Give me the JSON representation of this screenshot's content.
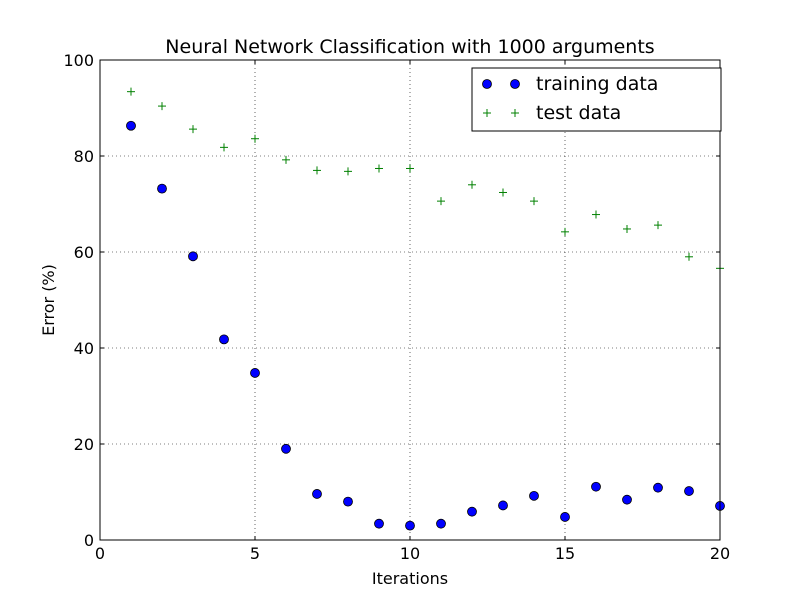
{
  "chart_data": {
    "type": "scatter",
    "title": "Neural Network Classification with 1000 arguments",
    "xlabel": "Iterations",
    "ylabel": "Error (%)",
    "xlim": [
      0,
      20
    ],
    "ylim": [
      0,
      100
    ],
    "xticks": [
      0,
      5,
      10,
      15,
      20
    ],
    "yticks": [
      0,
      20,
      40,
      60,
      80,
      100
    ],
    "grid": true,
    "legend_position": "top-right",
    "series": [
      {
        "name": "training data",
        "marker": "circle",
        "color": "#0000ff",
        "x": [
          1,
          2,
          3,
          4,
          5,
          6,
          7,
          8,
          9,
          10,
          11,
          12,
          13,
          14,
          15,
          16,
          17,
          18,
          19,
          20
        ],
        "y": [
          86.3,
          73.2,
          59.1,
          41.8,
          34.8,
          19.0,
          9.6,
          8.0,
          3.4,
          3.0,
          3.4,
          5.9,
          7.2,
          9.2,
          4.8,
          11.1,
          8.4,
          10.9,
          10.2,
          7.1
        ]
      },
      {
        "name": "test data",
        "marker": "plus",
        "color": "#008000",
        "x": [
          1,
          2,
          3,
          4,
          5,
          6,
          7,
          8,
          9,
          10,
          11,
          12,
          13,
          14,
          15,
          16,
          17,
          18,
          19,
          20
        ],
        "y": [
          93.4,
          90.4,
          85.6,
          81.8,
          83.6,
          79.2,
          77.0,
          76.8,
          77.4,
          77.4,
          70.6,
          74.0,
          72.4,
          70.6,
          64.2,
          67.8,
          64.8,
          65.6,
          59.0,
          56.6
        ]
      }
    ]
  }
}
